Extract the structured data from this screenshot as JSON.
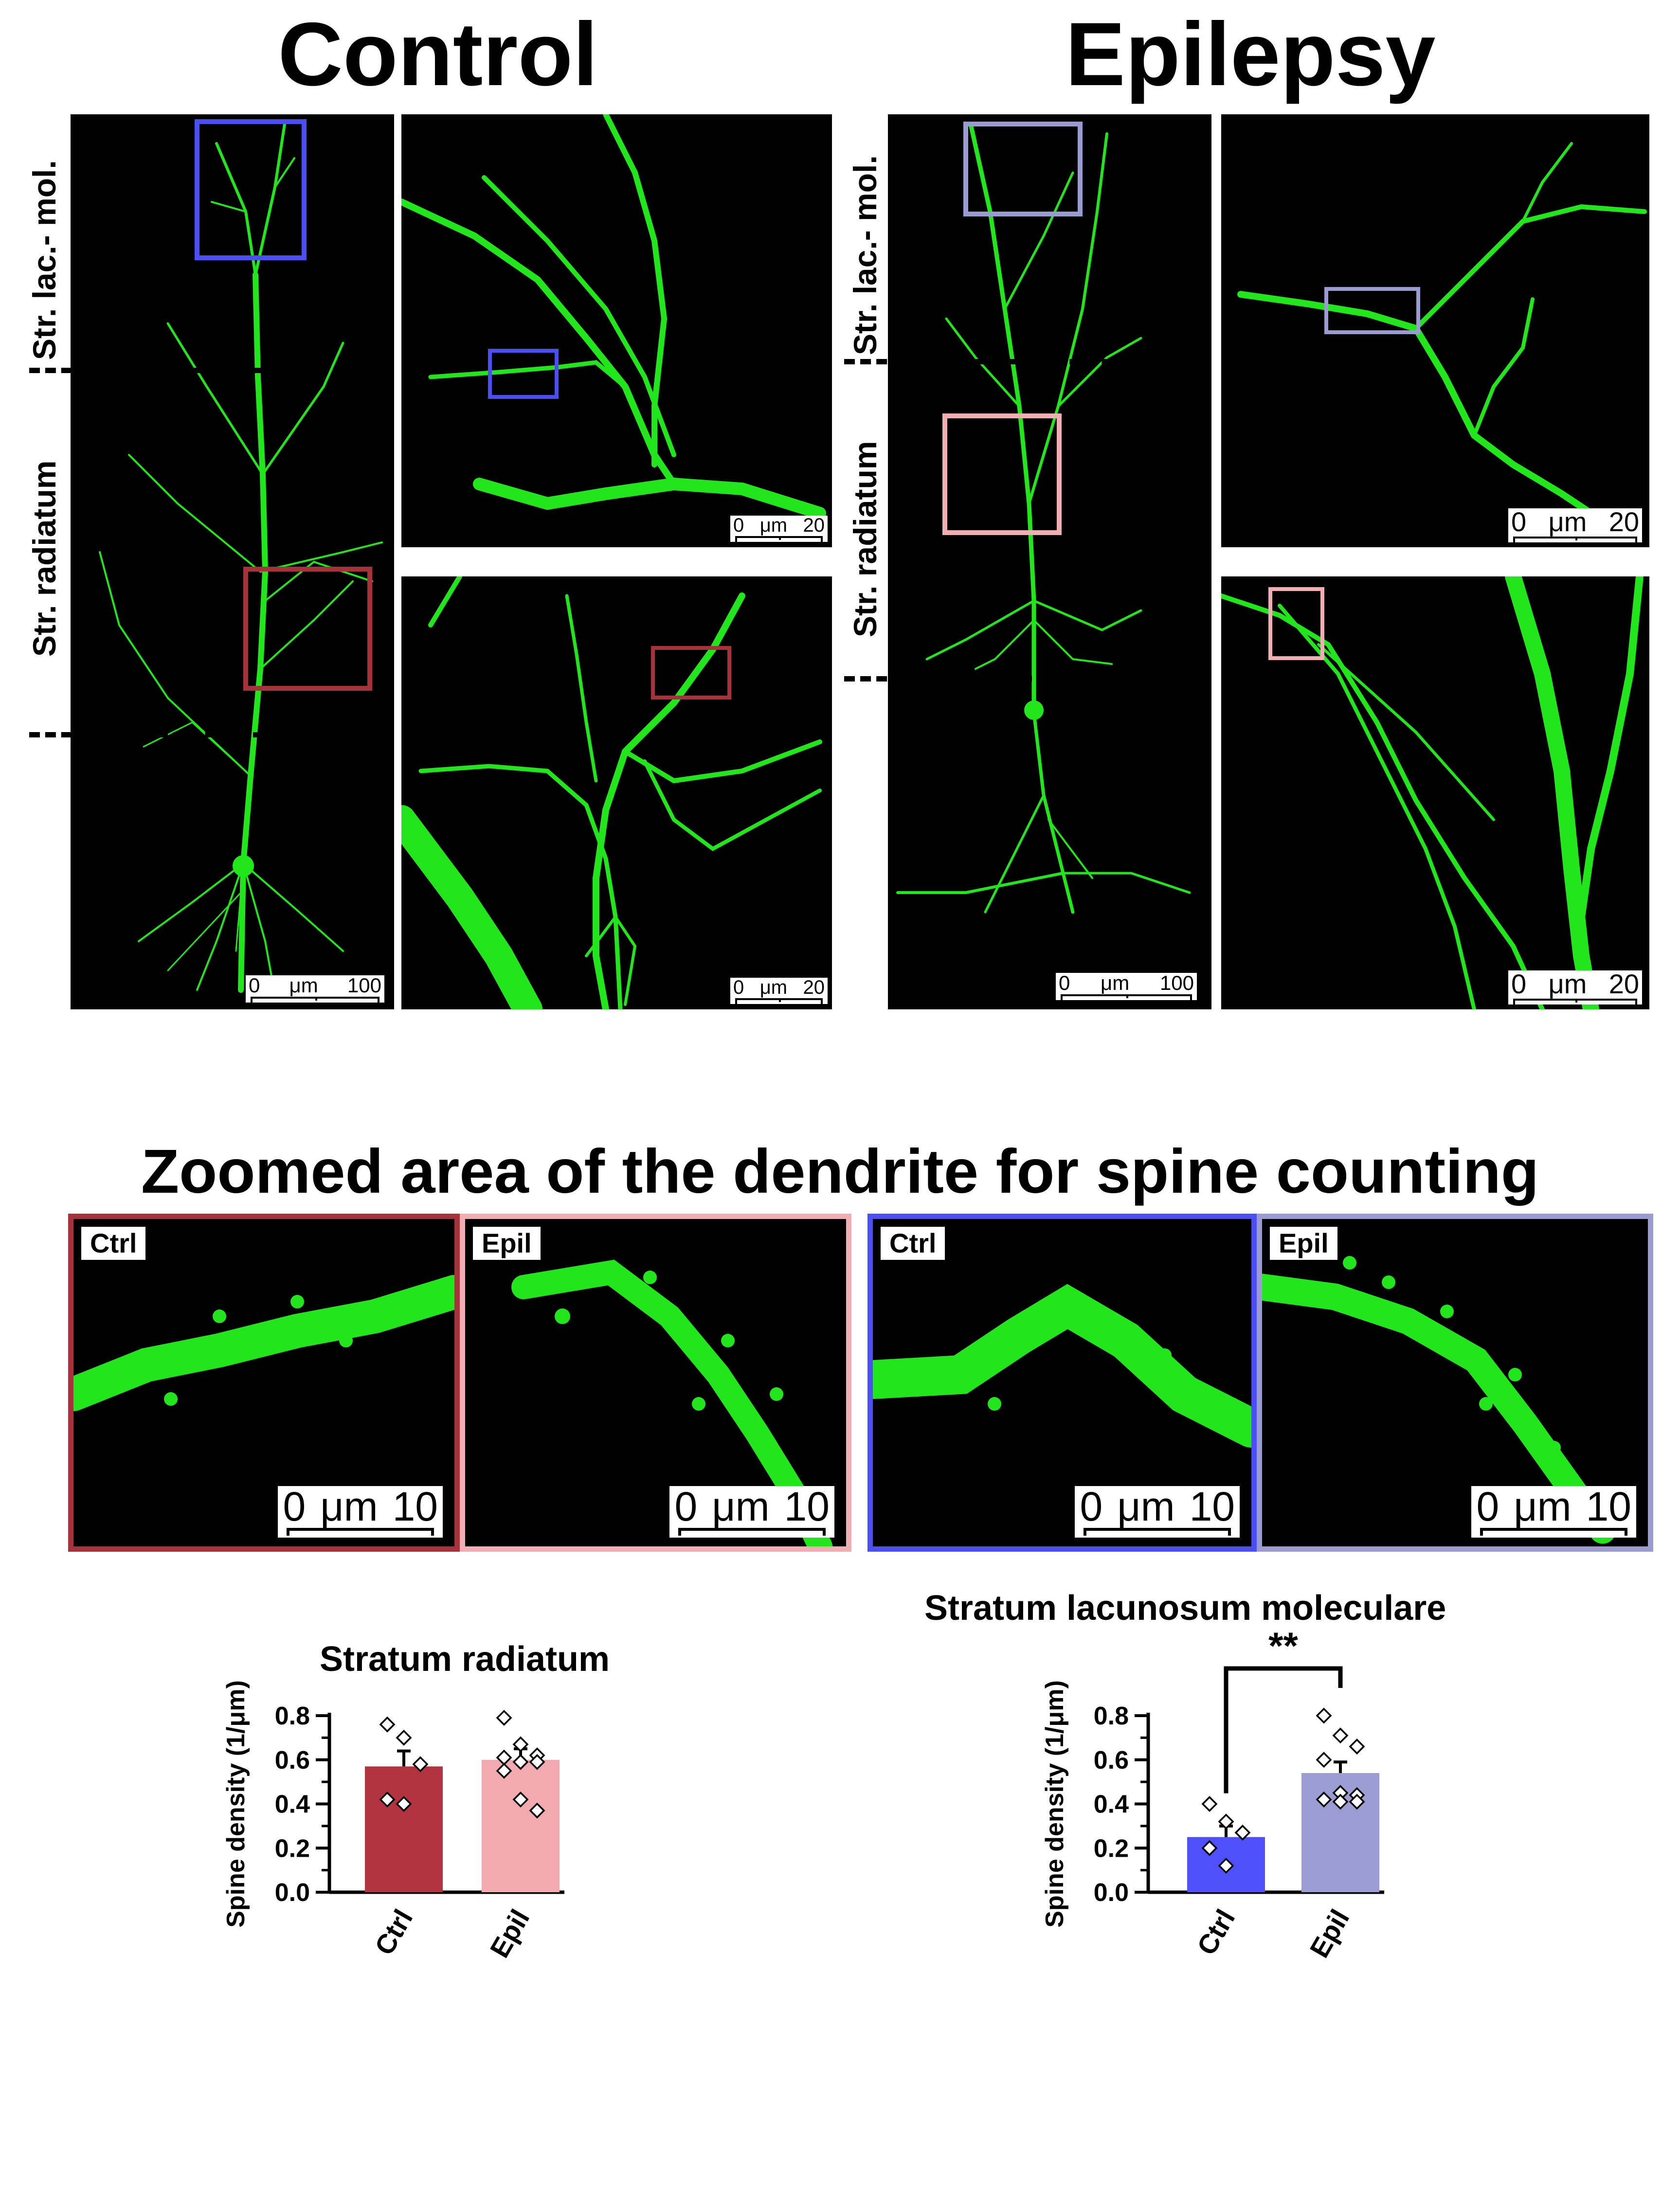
{
  "titles": {
    "control": "Control",
    "epilepsy": "Epilepsy",
    "zoom_section": "Zoomed area of the dendrite for spine counting"
  },
  "layers": {
    "slm": "Str. lac.- mol.",
    "radiatum": "Str. radiatum"
  },
  "scale_bars": {
    "overview": {
      "start": "0",
      "unit": "μm",
      "end": "100"
    },
    "detail": {
      "start": "0",
      "unit": "μm",
      "end": "20"
    },
    "zoom": {
      "start": "0",
      "unit": "μm",
      "end": "10"
    }
  },
  "zoom_panels": [
    {
      "tag": "Ctrl",
      "border": "#a6323c"
    },
    {
      "tag": "Epil",
      "border": "#f1aeb2"
    },
    {
      "tag": "Ctrl",
      "border": "#4b4ef2"
    },
    {
      "tag": "Epil",
      "border": "#9a9bd0"
    }
  ],
  "colors": {
    "neuron": "#22e61c",
    "ctrl_radiatum": "#b13440",
    "epil_radiatum": "#f2aab0",
    "ctrl_slm": "#5050fa",
    "epil_slm": "#9b9dd2"
  },
  "icons": [
    "neuron-image",
    "roi-box"
  ],
  "chart_data": [
    {
      "type": "bar",
      "title": "Stratum radiatum",
      "ylabel": "Spine density (1/μm)",
      "categories": [
        "Ctrl",
        "Epil"
      ],
      "values": [
        0.57,
        0.6
      ],
      "sem": [
        0.07,
        0.05
      ],
      "ylim": [
        0,
        0.8
      ],
      "yticks": [
        "0.0",
        "0.2",
        "0.4",
        "0.6",
        "0.8"
      ],
      "colors": [
        "#b13440",
        "#f2aab0"
      ],
      "points": [
        [
          0.76,
          0.7,
          0.58,
          0.42,
          0.4
        ],
        [
          0.79,
          0.67,
          0.62,
          0.61,
          0.59,
          0.59,
          0.55,
          0.42,
          0.37
        ]
      ],
      "significance": ""
    },
    {
      "type": "bar",
      "title": "Stratum lacunosum moleculare",
      "ylabel": "Spine density (1/μm)",
      "categories": [
        "Ctrl",
        "Epil"
      ],
      "values": [
        0.25,
        0.54
      ],
      "sem": [
        0.05,
        0.05
      ],
      "ylim": [
        0,
        0.8
      ],
      "yticks": [
        "0.0",
        "0.2",
        "0.4",
        "0.6",
        "0.8"
      ],
      "colors": [
        "#5050fa",
        "#9b9dd2"
      ],
      "points": [
        [
          0.4,
          0.32,
          0.27,
          0.2,
          0.12
        ],
        [
          0.8,
          0.71,
          0.66,
          0.6,
          0.45,
          0.44,
          0.42,
          0.41,
          0.41
        ]
      ],
      "significance": "**"
    }
  ]
}
